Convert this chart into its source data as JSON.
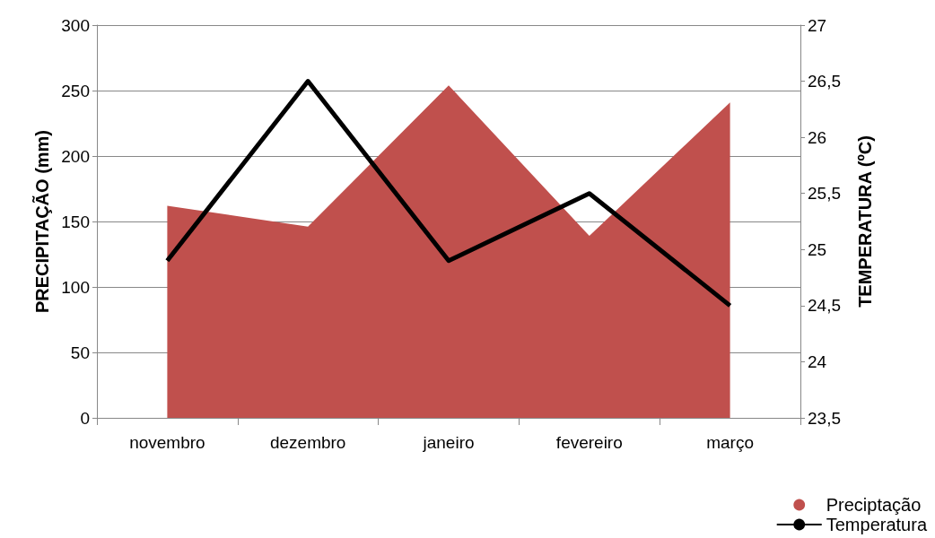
{
  "chart_data": {
    "type": "area",
    "categories": [
      "novembro",
      "dezembro",
      "janeiro",
      "fevereiro",
      "março"
    ],
    "series": [
      {
        "name": "Preciptação",
        "color": "#c0504d",
        "values": [
          162,
          146,
          254,
          139,
          241
        ]
      },
      {
        "name": "Temperatura",
        "type": "line",
        "axis": "y2",
        "color": "#000000",
        "values": [
          24.9,
          26.5,
          24.9,
          25.5,
          24.5
        ]
      }
    ],
    "ylabel": "PRECIPITAÇÃO (mm)",
    "y2label": "TEMPERATURA (ºC)",
    "ylim": [
      0,
      300
    ],
    "yticks": [
      0,
      50,
      100,
      150,
      200,
      250,
      300
    ],
    "y2lim": [
      23.5,
      27
    ],
    "y2ticks": [
      {
        "value": 23.5,
        "label": "23,5"
      },
      24,
      {
        "value": 24.5,
        "label": "24,5"
      },
      25,
      {
        "value": 25.5,
        "label": "25,5"
      },
      26,
      {
        "value": 26.5,
        "label": "26,5"
      },
      27
    ],
    "grid": "y",
    "legend": "bottom right",
    "marker": "none",
    "line_style": "solid"
  }
}
